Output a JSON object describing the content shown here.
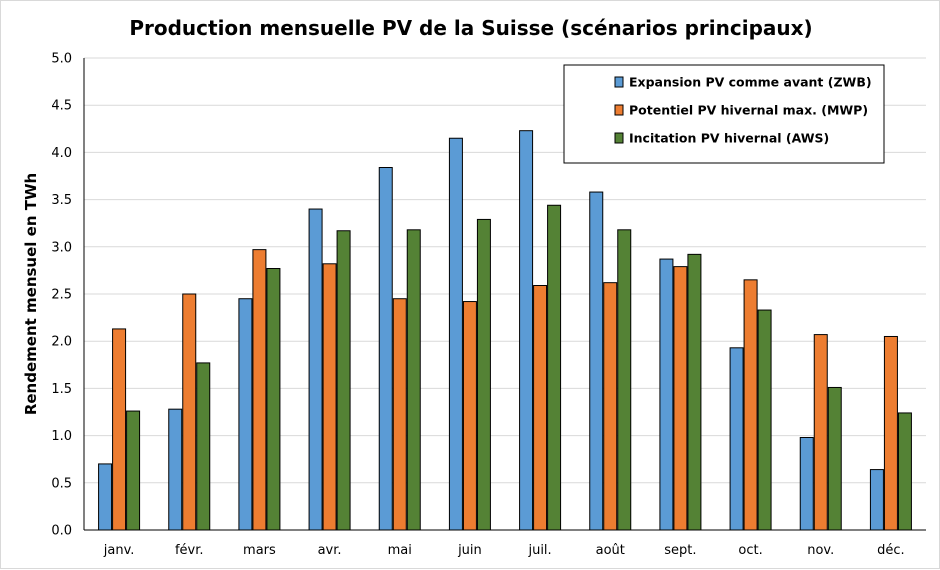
{
  "chart_data": {
    "type": "bar",
    "title": "Production mensuelle PV de la Suisse (scénarios principaux)",
    "xlabel": "",
    "ylabel": "Rendement mensuel en TWh",
    "ylim": [
      0,
      5.0
    ],
    "ytick_step": 0.5,
    "yticks": [
      "0.0",
      "0.5",
      "1.0",
      "1.5",
      "2.0",
      "2.5",
      "3.0",
      "3.5",
      "4.0",
      "4.5",
      "5.0"
    ],
    "grid": true,
    "legend_position": "top-right",
    "categories": [
      "janv.",
      "févr.",
      "mars",
      "avr.",
      "mai",
      "juin",
      "juil.",
      "août",
      "sept.",
      "oct.",
      "nov.",
      "déc."
    ],
    "series": [
      {
        "name": "Expansion PV comme avant (ZWB)",
        "color": "#5b9bd5",
        "values": [
          0.7,
          1.28,
          2.45,
          3.4,
          3.84,
          4.15,
          4.23,
          3.58,
          2.87,
          1.93,
          0.98,
          0.64
        ]
      },
      {
        "name": "Potentiel PV hivernal max. (MWP)",
        "color": "#ed7d31",
        "values": [
          2.13,
          2.5,
          2.97,
          2.82,
          2.45,
          2.42,
          2.59,
          2.62,
          2.79,
          2.65,
          2.07,
          2.05
        ]
      },
      {
        "name": "Incitation PV hivernal (AWS)",
        "color": "#548235",
        "values": [
          1.26,
          1.77,
          2.77,
          3.17,
          3.18,
          3.29,
          3.44,
          3.18,
          2.92,
          2.33,
          1.51,
          1.24
        ]
      }
    ]
  }
}
